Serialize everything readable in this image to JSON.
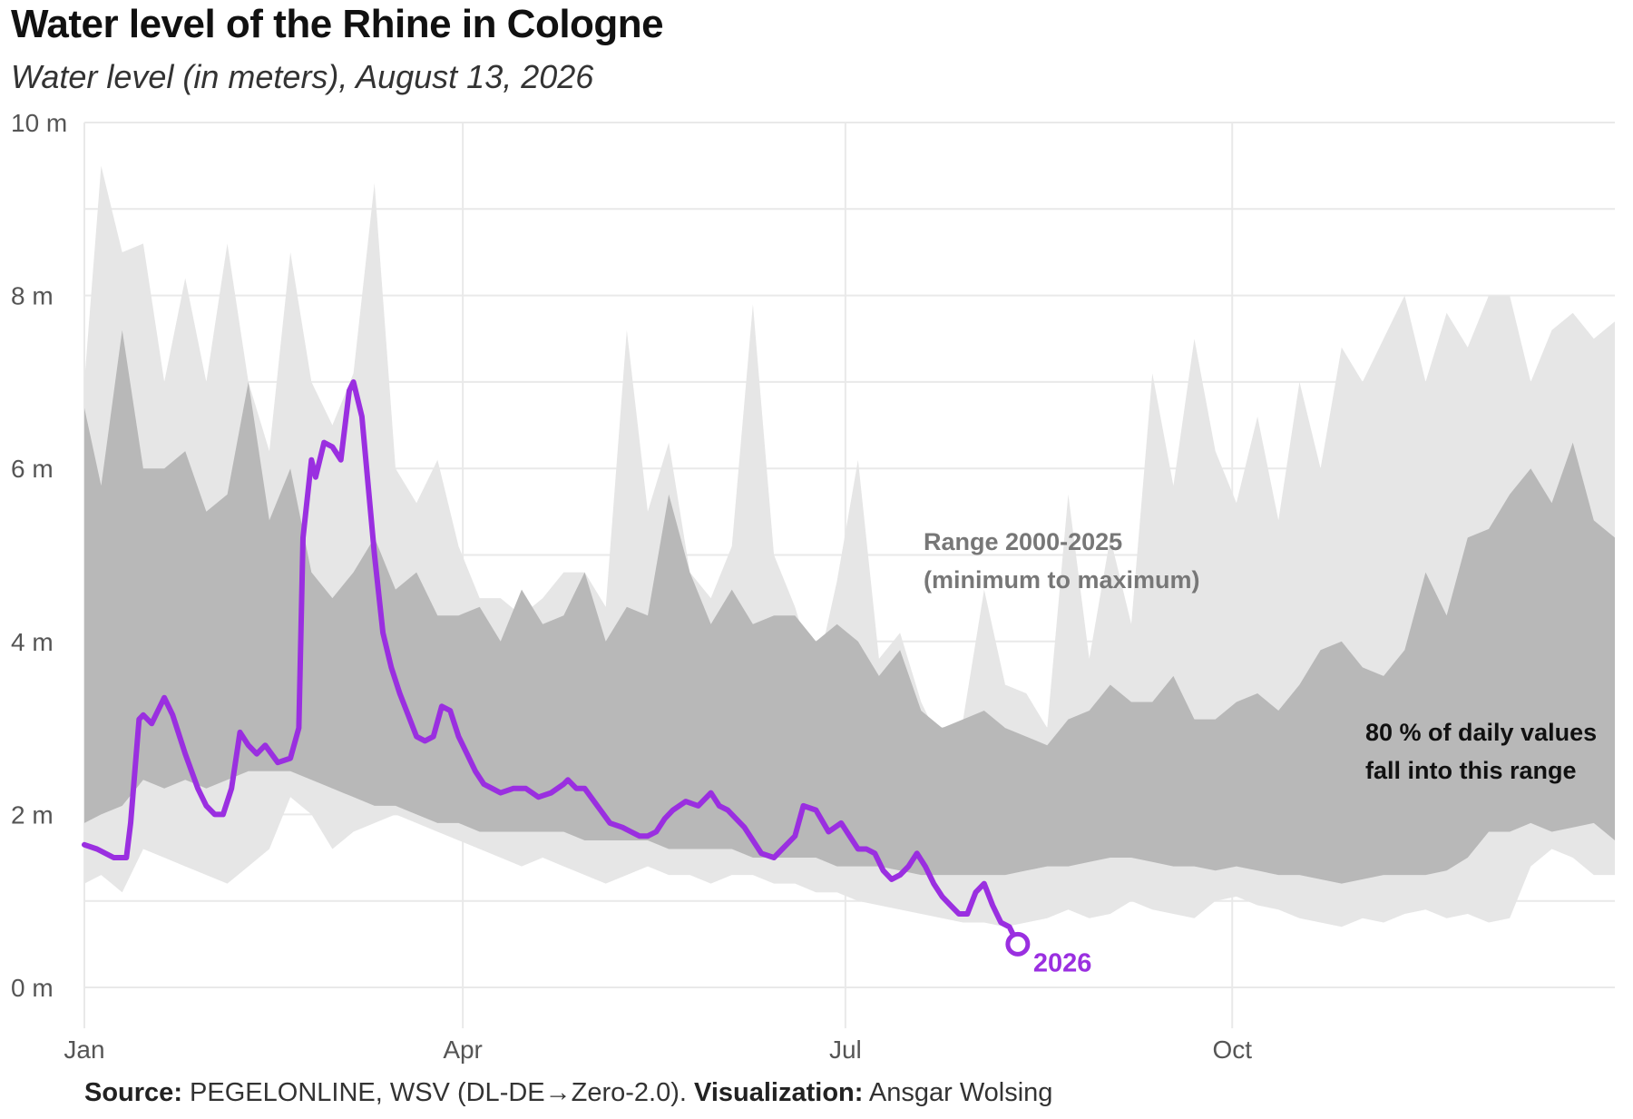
{
  "chart_data": {
    "type": "area",
    "title": "Water level of the Rhine in Cologne",
    "subtitle": "Water level (in meters), August 13, 2026",
    "xlabel": "",
    "ylabel": "",
    "y_ticks": [
      0,
      2,
      4,
      6,
      8,
      10
    ],
    "y_tick_labels": [
      "0 m",
      "2 m",
      "4 m",
      "6 m",
      "8 m",
      "10 m"
    ],
    "ylim": [
      0,
      10
    ],
    "x_ticks": [
      1,
      91,
      182,
      274
    ],
    "x_tick_labels": [
      "Jan",
      "Apr",
      "Jul",
      "Oct"
    ],
    "xlim": [
      1,
      365
    ],
    "grid": true,
    "colors": {
      "minmax": "#e6e6e6",
      "p80": "#b8b8b8",
      "line": "#9a2fe0",
      "grid": "#e9e9e9"
    },
    "series": [
      {
        "name": "Range 2000-2025 (minimum to maximum)",
        "kind": "band",
        "x": [
          1,
          5,
          10,
          15,
          20,
          25,
          30,
          35,
          40,
          45,
          50,
          55,
          60,
          65,
          70,
          75,
          80,
          85,
          90,
          95,
          100,
          105,
          110,
          115,
          120,
          125,
          130,
          135,
          140,
          145,
          150,
          155,
          160,
          165,
          170,
          175,
          180,
          185,
          190,
          195,
          200,
          205,
          210,
          215,
          220,
          225,
          230,
          235,
          240,
          245,
          250,
          255,
          260,
          265,
          270,
          275,
          280,
          285,
          290,
          295,
          300,
          305,
          310,
          315,
          320,
          325,
          330,
          335,
          340,
          345,
          350,
          355,
          360,
          365
        ],
        "low": [
          1.2,
          1.3,
          1.1,
          1.6,
          1.5,
          1.4,
          1.3,
          1.2,
          1.4,
          1.6,
          2.2,
          2.0,
          1.6,
          1.8,
          1.9,
          2.0,
          1.9,
          1.8,
          1.7,
          1.6,
          1.5,
          1.4,
          1.5,
          1.4,
          1.3,
          1.2,
          1.3,
          1.4,
          1.3,
          1.3,
          1.2,
          1.3,
          1.3,
          1.2,
          1.2,
          1.1,
          1.1,
          1.0,
          0.95,
          0.9,
          0.85,
          0.8,
          0.75,
          0.75,
          0.7,
          0.75,
          0.8,
          0.9,
          0.8,
          0.85,
          1.0,
          0.9,
          0.85,
          0.8,
          1.0,
          1.05,
          0.95,
          0.9,
          0.8,
          0.75,
          0.7,
          0.8,
          0.75,
          0.85,
          0.9,
          0.8,
          0.85,
          0.75,
          0.8,
          1.4,
          1.6,
          1.5,
          1.3,
          1.3
        ],
        "high": [
          7.0,
          9.5,
          8.5,
          8.6,
          7.0,
          8.2,
          7.0,
          8.6,
          7.0,
          6.2,
          8.5,
          7.0,
          6.5,
          7.1,
          9.3,
          6.0,
          5.6,
          6.1,
          5.1,
          4.5,
          4.5,
          4.3,
          4.5,
          4.8,
          4.8,
          4.4,
          7.6,
          5.5,
          6.3,
          4.8,
          4.5,
          5.1,
          7.9,
          5.0,
          4.4,
          3.6,
          4.7,
          6.1,
          3.8,
          4.1,
          3.3,
          2.8,
          3.1,
          4.6,
          3.5,
          3.4,
          3.0,
          5.7,
          3.8,
          5.2,
          4.2,
          7.1,
          5.8,
          7.5,
          6.2,
          5.6,
          6.6,
          5.4,
          7.0,
          6.0,
          7.4,
          7.0,
          7.5,
          8.0,
          7.0,
          7.8,
          7.4,
          8.0,
          8.0,
          7.0,
          7.6,
          7.8,
          7.5,
          7.7
        ]
      },
      {
        "name": "80 % of daily values fall into this range",
        "kind": "band",
        "x": [
          1,
          5,
          10,
          15,
          20,
          25,
          30,
          35,
          40,
          45,
          50,
          55,
          60,
          65,
          70,
          75,
          80,
          85,
          90,
          95,
          100,
          105,
          110,
          115,
          120,
          125,
          130,
          135,
          140,
          145,
          150,
          155,
          160,
          165,
          170,
          175,
          180,
          185,
          190,
          195,
          200,
          205,
          210,
          215,
          220,
          225,
          230,
          235,
          240,
          245,
          250,
          255,
          260,
          265,
          270,
          275,
          280,
          285,
          290,
          295,
          300,
          305,
          310,
          315,
          320,
          325,
          330,
          335,
          340,
          345,
          350,
          355,
          360,
          365
        ],
        "low": [
          1.9,
          2.0,
          2.1,
          2.4,
          2.3,
          2.4,
          2.3,
          2.4,
          2.5,
          2.5,
          2.5,
          2.4,
          2.3,
          2.2,
          2.1,
          2.1,
          2.0,
          1.9,
          1.9,
          1.8,
          1.8,
          1.8,
          1.8,
          1.8,
          1.7,
          1.7,
          1.7,
          1.7,
          1.6,
          1.6,
          1.6,
          1.6,
          1.5,
          1.5,
          1.5,
          1.5,
          1.4,
          1.4,
          1.4,
          1.35,
          1.3,
          1.3,
          1.3,
          1.3,
          1.3,
          1.35,
          1.4,
          1.4,
          1.45,
          1.5,
          1.5,
          1.45,
          1.4,
          1.4,
          1.35,
          1.4,
          1.35,
          1.3,
          1.3,
          1.25,
          1.2,
          1.25,
          1.3,
          1.3,
          1.3,
          1.35,
          1.5,
          1.8,
          1.8,
          1.9,
          1.8,
          1.85,
          1.9,
          1.7
        ],
        "high": [
          6.7,
          5.8,
          7.6,
          6.0,
          6.0,
          6.2,
          5.5,
          5.7,
          7.0,
          5.4,
          6.0,
          4.8,
          4.5,
          4.8,
          5.2,
          4.6,
          4.8,
          4.3,
          4.3,
          4.4,
          4.0,
          4.6,
          4.2,
          4.3,
          4.8,
          4.0,
          4.4,
          4.3,
          5.7,
          4.8,
          4.2,
          4.6,
          4.2,
          4.3,
          4.3,
          4.0,
          4.2,
          4.0,
          3.6,
          3.9,
          3.2,
          3.0,
          3.1,
          3.2,
          3.0,
          2.9,
          2.8,
          3.1,
          3.2,
          3.5,
          3.3,
          3.3,
          3.6,
          3.1,
          3.1,
          3.3,
          3.4,
          3.2,
          3.5,
          3.9,
          4.0,
          3.7,
          3.6,
          3.9,
          4.8,
          4.3,
          5.2,
          5.3,
          5.7,
          6.0,
          5.6,
          6.3,
          5.4,
          5.2
        ]
      },
      {
        "name": "2026",
        "kind": "line",
        "x": [
          1,
          4,
          8,
          11,
          12,
          14,
          15,
          17,
          20,
          22,
          25,
          28,
          30,
          32,
          34,
          36,
          38,
          40,
          42,
          44,
          47,
          50,
          52,
          53,
          55,
          56,
          58,
          60,
          62,
          64,
          65,
          67,
          70,
          72,
          74,
          76,
          78,
          80,
          82,
          84,
          86,
          88,
          90,
          92,
          94,
          96,
          98,
          100,
          103,
          106,
          109,
          112,
          115,
          116,
          118,
          120,
          123,
          126,
          129,
          131,
          133,
          135,
          137,
          139,
          141,
          144,
          147,
          150,
          152,
          154,
          156,
          158,
          160,
          162,
          165,
          167,
          170,
          172,
          175,
          178,
          181,
          183,
          185,
          187,
          189,
          191,
          193,
          195,
          197,
          199,
          201,
          203,
          205,
          207,
          209,
          211,
          213,
          215,
          217,
          219,
          221,
          223
        ],
        "y": [
          1.65,
          1.6,
          1.5,
          1.5,
          1.9,
          3.1,
          3.15,
          3.05,
          3.35,
          3.15,
          2.7,
          2.3,
          2.1,
          2.0,
          2.0,
          2.3,
          2.95,
          2.8,
          2.7,
          2.8,
          2.6,
          2.65,
          3.0,
          5.2,
          6.1,
          5.9,
          6.3,
          6.25,
          6.1,
          6.9,
          7.0,
          6.6,
          5.0,
          4.1,
          3.7,
          3.4,
          3.15,
          2.9,
          2.85,
          2.9,
          3.25,
          3.2,
          2.9,
          2.7,
          2.5,
          2.35,
          2.3,
          2.25,
          2.3,
          2.3,
          2.2,
          2.25,
          2.35,
          2.4,
          2.3,
          2.3,
          2.1,
          1.9,
          1.85,
          1.8,
          1.75,
          1.75,
          1.8,
          1.95,
          2.05,
          2.15,
          2.1,
          2.25,
          2.1,
          2.05,
          1.95,
          1.85,
          1.7,
          1.55,
          1.5,
          1.6,
          1.75,
          2.1,
          2.05,
          1.8,
          1.9,
          1.75,
          1.6,
          1.6,
          1.55,
          1.35,
          1.25,
          1.3,
          1.4,
          1.55,
          1.4,
          1.2,
          1.05,
          0.95,
          0.85,
          0.85,
          1.1,
          1.2,
          0.95,
          0.75,
          0.7,
          0.5
        ],
        "end_label": "2026"
      }
    ],
    "annotations": {
      "range_line1": "Range 2000-2025",
      "range_line2": "(minimum to maximum)",
      "p80_line1": "80 % of daily values",
      "p80_line2": "fall into this range",
      "current_label": "2026"
    }
  },
  "source": {
    "source_label": "Source:",
    "source_text": "PEGELONLINE, WSV (DL-DE→Zero-2.0).",
    "viz_label": "Visualization:",
    "viz_text": "Ansgar Wolsing"
  }
}
